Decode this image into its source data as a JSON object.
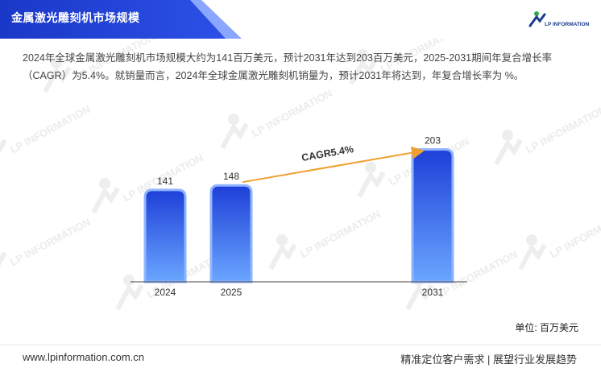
{
  "header": {
    "title": "金属激光雕刻机市场规模",
    "logo_text": "LP INFORMATION"
  },
  "description": "2024年全球金属激光雕刻机市场规模大约为141百万美元，预计2031年达到203百万美元，2025-2031期间年复合增长率（CAGR）为5.4%。就销量而言，2024年全球金属激光雕刻机销量为，预计2031年将达到，年复合增长率为 %。",
  "watermark": "LP INFORMATION",
  "chart_data": {
    "type": "bar",
    "categories": [
      "2024",
      "2025",
      "2031"
    ],
    "values": [
      141,
      148,
      203
    ],
    "annotation": "CAGR5.4%",
    "unit": "单位: 百万美元",
    "ylim": [
      0,
      210
    ],
    "grid": false,
    "colors": {
      "bar_top": "#1e3fd8",
      "bar_bottom": "#6aa6ff",
      "arrow": "#f0a030"
    }
  },
  "footer": {
    "url": "www.lpinformation.com.cn",
    "slogan": "精准定位客户需求 | 展望行业发展趋势"
  },
  "colors": {
    "brand": "#1d3ccf",
    "accent": "#6c8cff"
  }
}
